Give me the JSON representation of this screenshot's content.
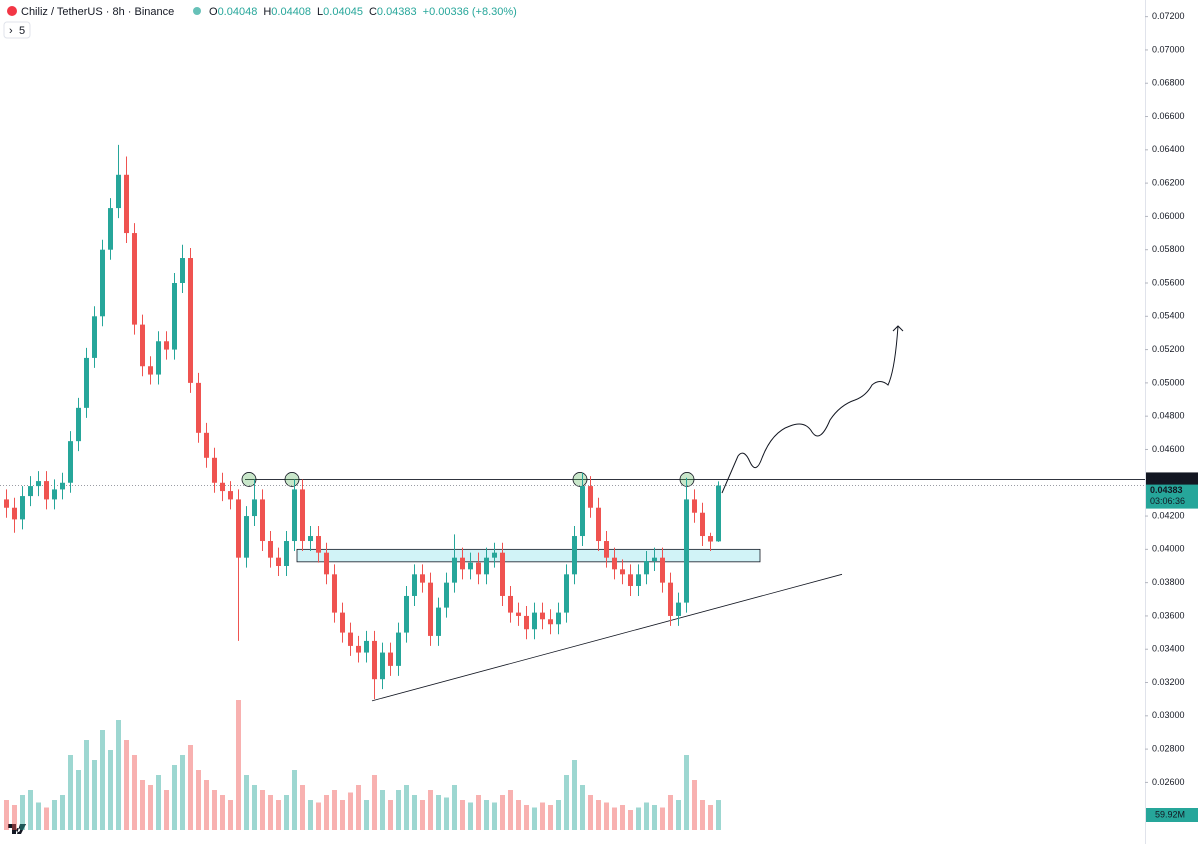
{
  "chart_data": {
    "type": "candlestick",
    "title": "Chiliz / TetherUS · 8h · Binance",
    "header_values": [
      {
        "key": "O",
        "value": 0.04048
      },
      {
        "key": "H",
        "value": 0.04408
      },
      {
        "key": "L",
        "value": 0.04045
      },
      {
        "key": "C",
        "value": 0.04383
      }
    ],
    "change": "+0.00336 (+8.30%)",
    "indicator": "5",
    "up_color": "#26a69a",
    "down_color": "#ef5350",
    "ylim": [
      0.0223,
      0.073
    ],
    "yticks": [
      {
        "value": 0.072,
        "label": "0.07200"
      },
      {
        "value": 0.07,
        "label": "0.07000"
      },
      {
        "value": 0.068,
        "label": "0.06800"
      },
      {
        "value": 0.066,
        "label": "0.06600"
      },
      {
        "value": 0.064,
        "label": "0.06400"
      },
      {
        "value": 0.062,
        "label": "0.06200"
      },
      {
        "value": 0.06,
        "label": "0.06000"
      },
      {
        "value": 0.058,
        "label": "0.05800"
      },
      {
        "value": 0.056,
        "label": "0.05600"
      },
      {
        "value": 0.054,
        "label": "0.05400"
      },
      {
        "value": 0.052,
        "label": "0.05200"
      },
      {
        "value": 0.05,
        "label": "0.05000"
      },
      {
        "value": 0.048,
        "label": "0.04800"
      },
      {
        "value": 0.046,
        "label": "0.04600"
      },
      {
        "value": 0.042,
        "label": "0.04200"
      },
      {
        "value": 0.04,
        "label": "0.04000"
      },
      {
        "value": 0.038,
        "label": "0.03800"
      },
      {
        "value": 0.036,
        "label": "0.03600"
      },
      {
        "value": 0.034,
        "label": "0.03400"
      },
      {
        "value": 0.032,
        "label": "0.03200"
      },
      {
        "value": 0.03,
        "label": "0.03000"
      },
      {
        "value": 0.028,
        "label": "0.02800"
      },
      {
        "value": 0.026,
        "label": "0.02600"
      }
    ],
    "open": [
      0.043,
      0.0425,
      0.0418,
      0.0432,
      0.0438,
      0.0441,
      0.043,
      0.0436,
      0.044,
      0.0465,
      0.0485,
      0.0515,
      0.054,
      0.058,
      0.0605,
      0.0625,
      0.059,
      0.0535,
      0.051,
      0.0505,
      0.0525,
      0.052,
      0.056,
      0.0575,
      0.05,
      0.047,
      0.0455,
      0.044,
      0.0435,
      0.043,
      0.0395,
      0.042,
      0.043,
      0.0405,
      0.0395,
      0.039,
      0.0405,
      0.0436,
      0.0405,
      0.0408,
      0.0398,
      0.0385,
      0.0362,
      0.035,
      0.0342,
      0.0338,
      0.0345,
      0.0322,
      0.0338,
      0.033,
      0.035,
      0.0372,
      0.0385,
      0.038,
      0.0348,
      0.0365,
      0.038,
      0.0395,
      0.0388,
      0.0392,
      0.0385,
      0.0395,
      0.0398,
      0.0372,
      0.0362,
      0.036,
      0.0352,
      0.0362,
      0.0358,
      0.0355,
      0.0362,
      0.0385,
      0.0408,
      0.0438,
      0.0425,
      0.0405,
      0.0395,
      0.0388,
      0.0385,
      0.0378,
      0.0385,
      0.0393,
      0.0395,
      0.038,
      0.036,
      0.0368,
      0.043,
      0.0422,
      0.0408,
      0.04048
    ],
    "high": [
      0.0436,
      0.0431,
      0.0438,
      0.0444,
      0.0447,
      0.0447,
      0.0442,
      0.0446,
      0.0471,
      0.0491,
      0.0521,
      0.0546,
      0.0586,
      0.0611,
      0.0643,
      0.0636,
      0.0596,
      0.0541,
      0.0516,
      0.0531,
      0.0531,
      0.0566,
      0.0583,
      0.0581,
      0.0506,
      0.0476,
      0.0461,
      0.0446,
      0.0441,
      0.0436,
      0.0426,
      0.0442,
      0.0436,
      0.0411,
      0.0401,
      0.0411,
      0.0442,
      0.0442,
      0.0414,
      0.0414,
      0.0404,
      0.0391,
      0.0368,
      0.0356,
      0.0348,
      0.0351,
      0.0351,
      0.0344,
      0.0344,
      0.0356,
      0.0378,
      0.0391,
      0.0391,
      0.0386,
      0.0371,
      0.0386,
      0.0409,
      0.0401,
      0.0398,
      0.0398,
      0.0401,
      0.0404,
      0.0404,
      0.0378,
      0.0368,
      0.0366,
      0.0368,
      0.0368,
      0.0364,
      0.0368,
      0.0391,
      0.0414,
      0.0446,
      0.0444,
      0.0431,
      0.0411,
      0.0401,
      0.0394,
      0.0391,
      0.0391,
      0.0399,
      0.0401,
      0.0401,
      0.0386,
      0.0374,
      0.0443,
      0.0436,
      0.0428,
      0.041,
      0.04408
    ],
    "low": [
      0.0419,
      0.041,
      0.0412,
      0.0426,
      0.0432,
      0.0424,
      0.0424,
      0.043,
      0.0434,
      0.0459,
      0.0479,
      0.0509,
      0.0534,
      0.0574,
      0.0599,
      0.0584,
      0.0529,
      0.0504,
      0.0499,
      0.0499,
      0.0514,
      0.0514,
      0.0554,
      0.0494,
      0.0464,
      0.0449,
      0.0434,
      0.0429,
      0.0424,
      0.0345,
      0.0389,
      0.0414,
      0.0399,
      0.0389,
      0.0384,
      0.0384,
      0.0399,
      0.0399,
      0.0399,
      0.0392,
      0.0379,
      0.0356,
      0.0344,
      0.0336,
      0.0332,
      0.0332,
      0.031,
      0.0316,
      0.0324,
      0.0324,
      0.0344,
      0.0366,
      0.0374,
      0.0342,
      0.0342,
      0.0359,
      0.0374,
      0.0382,
      0.0382,
      0.0379,
      0.0379,
      0.0389,
      0.0366,
      0.0356,
      0.0354,
      0.0346,
      0.0346,
      0.0352,
      0.0349,
      0.0349,
      0.0356,
      0.0379,
      0.0402,
      0.0419,
      0.0399,
      0.0389,
      0.0382,
      0.0379,
      0.0372,
      0.0372,
      0.0379,
      0.0387,
      0.0374,
      0.0354,
      0.0354,
      0.0362,
      0.0416,
      0.0402,
      0.0399,
      0.04045
    ],
    "close": [
      0.0425,
      0.0418,
      0.0432,
      0.0438,
      0.0441,
      0.043,
      0.0436,
      0.044,
      0.0465,
      0.0485,
      0.0515,
      0.054,
      0.058,
      0.0605,
      0.0625,
      0.059,
      0.0535,
      0.051,
      0.0505,
      0.0525,
      0.052,
      0.056,
      0.0575,
      0.05,
      0.047,
      0.0455,
      0.044,
      0.0435,
      0.043,
      0.0395,
      0.042,
      0.043,
      0.0405,
      0.0395,
      0.039,
      0.0405,
      0.0436,
      0.0405,
      0.0408,
      0.0398,
      0.0385,
      0.0362,
      0.035,
      0.0342,
      0.0338,
      0.0345,
      0.0322,
      0.0338,
      0.033,
      0.035,
      0.0372,
      0.0385,
      0.038,
      0.0348,
      0.0365,
      0.038,
      0.0395,
      0.0388,
      0.0392,
      0.0385,
      0.0395,
      0.0398,
      0.0372,
      0.0362,
      0.036,
      0.0352,
      0.0362,
      0.0358,
      0.0355,
      0.0362,
      0.0385,
      0.0408,
      0.0438,
      0.0425,
      0.0405,
      0.0395,
      0.0388,
      0.0385,
      0.0378,
      0.0385,
      0.0393,
      0.0395,
      0.038,
      0.036,
      0.0368,
      0.043,
      0.0422,
      0.0408,
      0.04047,
      0.04383
    ],
    "volume": [
      60,
      50,
      70,
      80,
      55,
      45,
      60,
      70,
      150,
      120,
      180,
      140,
      200,
      160,
      220,
      180,
      150,
      100,
      90,
      110,
      80,
      130,
      150,
      170,
      120,
      100,
      80,
      70,
      60,
      260,
      110,
      90,
      80,
      70,
      60,
      70,
      120,
      90,
      60,
      55,
      70,
      80,
      60,
      75,
      90,
      60,
      110,
      80,
      60,
      80,
      90,
      70,
      60,
      80,
      70,
      65,
      90,
      60,
      55,
      70,
      60,
      55,
      70,
      80,
      60,
      50,
      45,
      55,
      50,
      60,
      110,
      140,
      90,
      70,
      60,
      55,
      45,
      50,
      40,
      45,
      55,
      50,
      45,
      70,
      60,
      150,
      100,
      60,
      50,
      59.92
    ],
    "volume_last_label": "59.92M",
    "resistance": {
      "value": 0.0442,
      "label": "0.04420"
    },
    "last_price": {
      "value": 0.04383,
      "label": "0.04383"
    },
    "countdown": "03:06:36",
    "zone": [
      0.03925,
      0.04
    ],
    "trendline": [
      0.0309,
      0.0385
    ]
  }
}
